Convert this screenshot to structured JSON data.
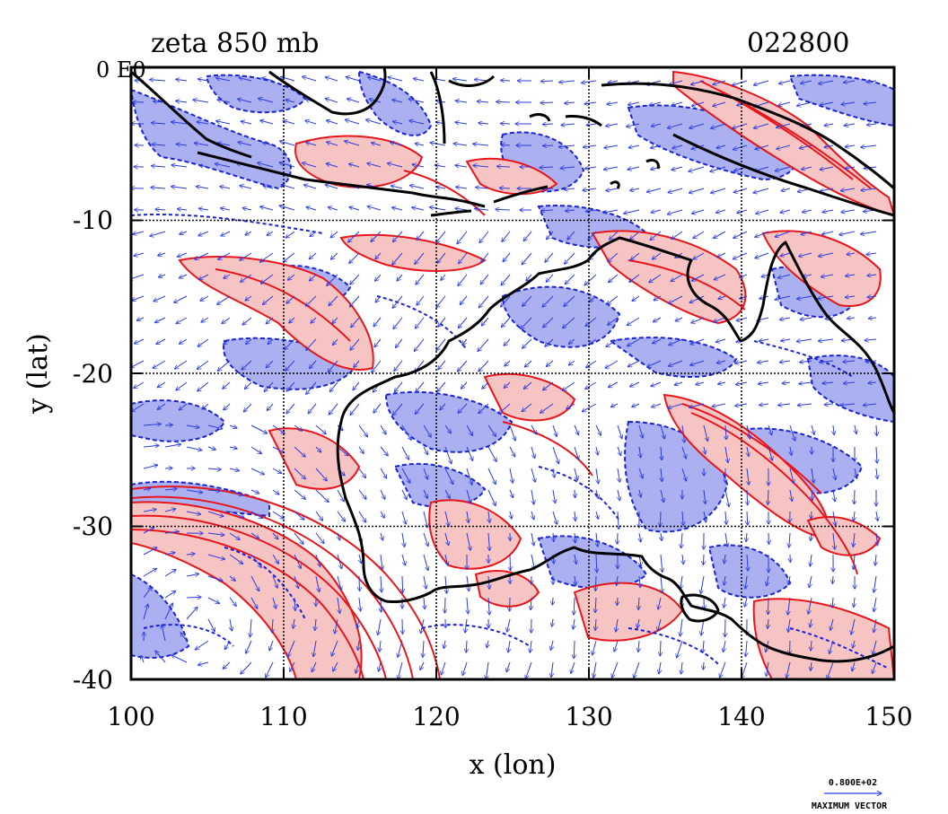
{
  "title": {
    "field": "zeta 850 mb",
    "time": "022800",
    "corner_label": "0 E0"
  },
  "axes": {
    "xlabel": "x (lon)",
    "ylabel": "y (lat)",
    "x_ticks": [
      "100",
      "110",
      "120",
      "130",
      "140",
      "150"
    ],
    "y_ticks": [
      "-10",
      "-20",
      "-30",
      "-40"
    ],
    "x_range": [
      100,
      150
    ],
    "y_range": [
      -40,
      0
    ],
    "grid": true
  },
  "legend": {
    "max_vector_value": "0.800E+02",
    "max_vector_label": "MAXIMUM VECTOR"
  },
  "colors": {
    "positive_contour": "#e8151b",
    "positive_fill": "#f7c4c4",
    "negative_contour": "#1a22d6",
    "negative_fill": "#aab0f0",
    "coastline": "#000000",
    "wind_vector": "#2b3be0"
  }
}
